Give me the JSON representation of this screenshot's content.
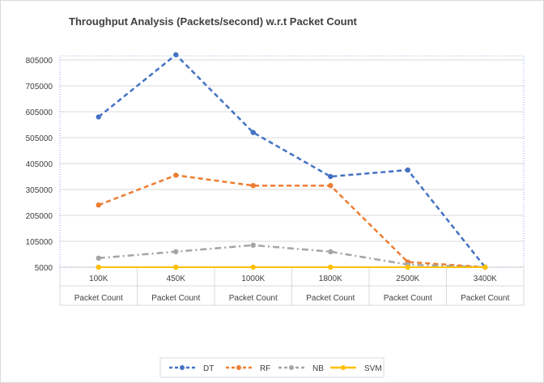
{
  "chart_data": {
    "type": "line",
    "title": "Throughput Analysis (Packets/second) w.r.t Packet Count",
    "categories": [
      "100K",
      "450K",
      "1000K",
      "1800K",
      "2500K",
      "3400K"
    ],
    "category_sublabel": "Packet Count",
    "y_ticks": [
      "805000",
      "705000",
      "605000",
      "505000",
      "405000",
      "305000",
      "205000",
      "105000",
      "5000"
    ],
    "ylim": [
      5000,
      805000
    ],
    "grid": true,
    "legend_position": "bottom",
    "series": [
      {
        "name": "DT",
        "color": "#4472C4",
        "dash": "dash",
        "values": [
          585000,
          825000,
          525000,
          355000,
          380000,
          5000
        ]
      },
      {
        "name": "RF",
        "color": "#ED7D31",
        "dash": "dash",
        "values": [
          245000,
          360000,
          320000,
          320000,
          25000,
          5000
        ]
      },
      {
        "name": "NB",
        "color": "#A5A5A5",
        "dash": "dashdot",
        "values": [
          40000,
          65000,
          90000,
          65000,
          15000,
          5000
        ]
      },
      {
        "name": "SVM",
        "color": "#FFC000",
        "dash": "solid",
        "values": [
          5000,
          5000,
          5000,
          5000,
          5000,
          5000
        ]
      }
    ]
  }
}
